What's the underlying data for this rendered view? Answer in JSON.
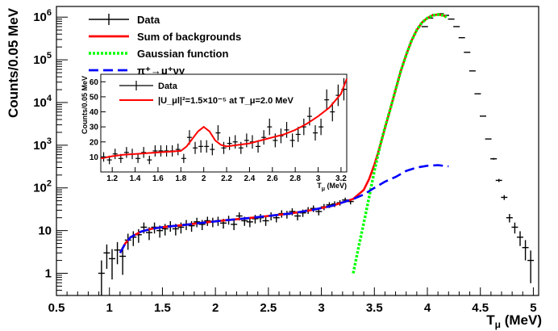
{
  "chart_data": [
    {
      "type": "line",
      "title": "",
      "xlabel": "T_μ (MeV)",
      "ylabel": "Counts/0.05 MeV",
      "xlim": [
        0.5,
        5.05
      ],
      "ylim_log10": [
        -0.52,
        6.25
      ],
      "yscale": "log",
      "grid": false,
      "legend_position": "top-left",
      "x_ticks": [
        "0.5",
        "1",
        "1.5",
        "2",
        "2.5",
        "3",
        "3.5",
        "4",
        "4.5",
        "5"
      ],
      "y_ticks": [
        "1",
        "10",
        "10^2",
        "10^3",
        "10^4",
        "10^5",
        "10^6"
      ],
      "legend": [
        "Data",
        "Sum of backgrounds",
        "Gaussian function",
        "π⁺→μ⁺νγ"
      ],
      "series": [
        {
          "name": "Data",
          "style": "points-errorbars",
          "color": "#000000",
          "points": [
            [
              0.925,
              1.0
            ],
            [
              0.975,
              3.0
            ],
            [
              1.025,
              2.2
            ],
            [
              1.075,
              3.5
            ],
            [
              1.125,
              2.5
            ],
            [
              1.175,
              6.0
            ],
            [
              1.225,
              7.0
            ],
            [
              1.275,
              8.0
            ],
            [
              1.325,
              12.0
            ],
            [
              1.375,
              9.0
            ],
            [
              1.425,
              12.0
            ],
            [
              1.475,
              10.0
            ],
            [
              1.525,
              11.0
            ],
            [
              1.575,
              13.0
            ],
            [
              1.625,
              11.0
            ],
            [
              1.675,
              12.0
            ],
            [
              1.725,
              14.0
            ],
            [
              1.775,
              13.0
            ],
            [
              1.825,
              16.0
            ],
            [
              1.875,
              14.0
            ],
            [
              1.925,
              17.0
            ],
            [
              1.975,
              16.0
            ],
            [
              2.025,
              17.0
            ],
            [
              2.075,
              15.0
            ],
            [
              2.125,
              18.0
            ],
            [
              2.175,
              14.0
            ],
            [
              2.225,
              22.0
            ],
            [
              2.275,
              17.0
            ],
            [
              2.325,
              16.0
            ],
            [
              2.375,
              19.0
            ],
            [
              2.425,
              20.0
            ],
            [
              2.475,
              17.0
            ],
            [
              2.525,
              22.0
            ],
            [
              2.575,
              20.0
            ],
            [
              2.625,
              25.0
            ],
            [
              2.675,
              24.0
            ],
            [
              2.725,
              28.0
            ],
            [
              2.775,
              22.0
            ],
            [
              2.825,
              26.0
            ],
            [
              2.875,
              30.0
            ],
            [
              2.925,
              33.0
            ],
            [
              2.975,
              28.0
            ],
            [
              3.025,
              36.0
            ],
            [
              3.075,
              40.0
            ],
            [
              3.125,
              42.0
            ],
            [
              3.175,
              45.0
            ],
            [
              3.225,
              52.0
            ],
            [
              3.275,
              48.0
            ],
            [
              3.975,
              600000
            ],
            [
              4.025,
              950000
            ],
            [
              4.075,
              1150000
            ],
            [
              4.125,
              1200000
            ],
            [
              4.175,
              1100000
            ],
            [
              4.225,
              900000
            ],
            [
              4.275,
              600000
            ],
            [
              4.325,
              330000
            ],
            [
              4.375,
              150000
            ],
            [
              4.425,
              55000
            ],
            [
              4.475,
              16000
            ],
            [
              4.525,
              4800
            ],
            [
              4.575,
              1400
            ],
            [
              4.625,
              480
            ],
            [
              4.675,
              150
            ],
            [
              4.725,
              60
            ],
            [
              4.775,
              20
            ],
            [
              4.825,
              12
            ],
            [
              4.875,
              7
            ],
            [
              4.925,
              4
            ],
            [
              4.975,
              2
            ]
          ]
        },
        {
          "name": "Sum of backgrounds",
          "style": "solid",
          "color": "#ff0000",
          "points": [
            [
              1.1,
              3
            ],
            [
              1.15,
              5
            ],
            [
              1.2,
              7
            ],
            [
              1.3,
              9.5
            ],
            [
              1.4,
              11
            ],
            [
              1.5,
              12
            ],
            [
              1.7,
              13.5
            ],
            [
              1.9,
              15.5
            ],
            [
              2.1,
              17.5
            ],
            [
              2.3,
              19.5
            ],
            [
              2.5,
              22
            ],
            [
              2.7,
              25
            ],
            [
              2.9,
              30
            ],
            [
              3.1,
              38
            ],
            [
              3.3,
              55
            ],
            [
              3.4,
              90
            ],
            [
              3.45,
              160
            ],
            [
              3.5,
              350
            ],
            [
              3.55,
              900
            ],
            [
              3.6,
              2500
            ],
            [
              3.65,
              7000
            ],
            [
              3.7,
              20000
            ],
            [
              3.75,
              55000
            ],
            [
              3.8,
              130000
            ],
            [
              3.85,
              280000
            ],
            [
              3.9,
              500000
            ],
            [
              3.95,
              750000
            ],
            [
              4.0,
              950000
            ],
            [
              4.05,
              1100000
            ],
            [
              4.1,
              1150000
            ],
            [
              4.15,
              1100000
            ],
            [
              4.18,
              1000000
            ]
          ]
        },
        {
          "name": "Gaussian function",
          "style": "dotted",
          "color": "#00ff00",
          "points": [
            [
              3.27,
              0.3
            ],
            [
              3.3,
              1
            ],
            [
              3.35,
              4
            ],
            [
              3.4,
              15
            ],
            [
              3.45,
              60
            ],
            [
              3.5,
              250
            ],
            [
              3.55,
              900
            ],
            [
              3.6,
              2600
            ],
            [
              3.65,
              7000
            ],
            [
              3.7,
              20000
            ],
            [
              3.75,
              55000
            ],
            [
              3.8,
              130000
            ],
            [
              3.85,
              280000
            ],
            [
              3.9,
              500000
            ],
            [
              3.95,
              750000
            ],
            [
              4.0,
              950000
            ],
            [
              4.05,
              1100000
            ],
            [
              4.1,
              1150000
            ],
            [
              4.15,
              1100000
            ],
            [
              4.18,
              1000000
            ]
          ]
        },
        {
          "name": "π⁺→μ⁺νγ",
          "style": "dashed",
          "color": "#0000ff",
          "points": [
            [
              1.1,
              3
            ],
            [
              1.15,
              5
            ],
            [
              1.2,
              7
            ],
            [
              1.3,
              9.5
            ],
            [
              1.4,
              11
            ],
            [
              1.5,
              12
            ],
            [
              1.7,
              13.5
            ],
            [
              1.9,
              15.5
            ],
            [
              2.1,
              17.5
            ],
            [
              2.3,
              19.5
            ],
            [
              2.5,
              22
            ],
            [
              2.7,
              25
            ],
            [
              2.9,
              30
            ],
            [
              3.1,
              38
            ],
            [
              3.3,
              55
            ],
            [
              3.4,
              70
            ],
            [
              3.5,
              100
            ],
            [
              3.6,
              140
            ],
            [
              3.7,
              180
            ],
            [
              3.8,
              250
            ],
            [
              3.9,
              300
            ],
            [
              4.0,
              330
            ],
            [
              4.1,
              340
            ],
            [
              4.2,
              320
            ]
          ]
        }
      ]
    },
    {
      "type": "line",
      "title": "",
      "xlabel": "T_μ (MeV)",
      "ylabel": "Counts/0.05 MeV",
      "xlim": [
        1.1,
        3.25
      ],
      "ylim": [
        0,
        65
      ],
      "x_ticks": [
        "1.2",
        "1.4",
        "1.6",
        "1.8",
        "2",
        "2.2",
        "2.4",
        "2.6",
        "2.8",
        "3",
        "3.2"
      ],
      "y_ticks": [
        "10",
        "20",
        "30",
        "40",
        "50",
        "60"
      ],
      "legend": [
        "Data",
        "|U_μl|²=1.5×10⁻⁵ at T_μ=2.0 MeV"
      ],
      "series": [
        {
          "name": "Data",
          "style": "points-errorbars",
          "color": "#000000",
          "points": [
            [
              1.125,
              10
            ],
            [
              1.175,
              8
            ],
            [
              1.225,
              12
            ],
            [
              1.275,
              9
            ],
            [
              1.325,
              13
            ],
            [
              1.375,
              12
            ],
            [
              1.425,
              9
            ],
            [
              1.475,
              13
            ],
            [
              1.525,
              8
            ],
            [
              1.575,
              14
            ],
            [
              1.625,
              14
            ],
            [
              1.675,
              14
            ],
            [
              1.725,
              14
            ],
            [
              1.775,
              15
            ],
            [
              1.825,
              9
            ],
            [
              1.875,
              23
            ],
            [
              1.925,
              16
            ],
            [
              1.975,
              17
            ],
            [
              2.025,
              17
            ],
            [
              2.075,
              15
            ],
            [
              2.125,
              26
            ],
            [
              2.175,
              16
            ],
            [
              2.225,
              19
            ],
            [
              2.275,
              20
            ],
            [
              2.325,
              16
            ],
            [
              2.375,
              21
            ],
            [
              2.425,
              20
            ],
            [
              2.475,
              17
            ],
            [
              2.525,
              23
            ],
            [
              2.575,
              30
            ],
            [
              2.625,
              21
            ],
            [
              2.675,
              24
            ],
            [
              2.725,
              28
            ],
            [
              2.775,
              21
            ],
            [
              2.825,
              25
            ],
            [
              2.875,
              30
            ],
            [
              2.925,
              37
            ],
            [
              2.975,
              26
            ],
            [
              3.025,
              30
            ],
            [
              3.075,
              48
            ],
            [
              3.125,
              40
            ],
            [
              3.175,
              51
            ],
            [
              3.225,
              55
            ]
          ]
        },
        {
          "name": "|U_μl|²=1.5×10⁻⁵ at T_μ=2.0 MeV",
          "style": "solid",
          "color": "#ff0000",
          "points": [
            [
              1.1,
              9
            ],
            [
              1.2,
              10.5
            ],
            [
              1.3,
              11.5
            ],
            [
              1.4,
              12
            ],
            [
              1.5,
              12.5
            ],
            [
              1.6,
              13
            ],
            [
              1.7,
              13.5
            ],
            [
              1.8,
              14
            ],
            [
              1.85,
              17
            ],
            [
              1.9,
              22
            ],
            [
              1.95,
              27
            ],
            [
              2.0,
              30
            ],
            [
              2.05,
              27
            ],
            [
              2.1,
              21
            ],
            [
              2.15,
              18
            ],
            [
              2.2,
              17
            ],
            [
              2.3,
              18
            ],
            [
              2.4,
              19
            ],
            [
              2.5,
              21
            ],
            [
              2.6,
              23
            ],
            [
              2.7,
              25
            ],
            [
              2.8,
              28
            ],
            [
              2.9,
              32
            ],
            [
              3.0,
              37
            ],
            [
              3.1,
              43
            ],
            [
              3.2,
              52
            ],
            [
              3.25,
              62
            ]
          ]
        }
      ]
    }
  ]
}
